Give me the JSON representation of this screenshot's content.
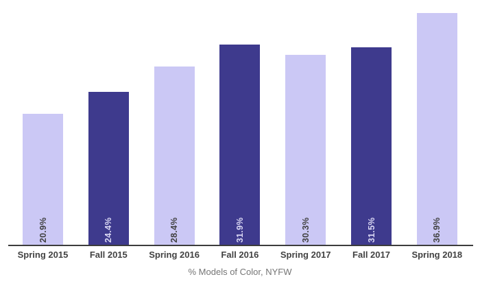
{
  "chart_data": {
    "type": "bar",
    "categories": [
      "Spring 2015",
      "Fall 2015",
      "Spring 2016",
      "Fall 2016",
      "Spring 2017",
      "Fall 2017",
      "Spring 2018"
    ],
    "values": [
      20.9,
      24.4,
      28.4,
      31.9,
      30.3,
      31.5,
      36.9
    ],
    "value_labels": [
      "20.9%",
      "24.4%",
      "28.4%",
      "31.9%",
      "30.3%",
      "31.5%",
      "36.9%"
    ],
    "bar_color_pattern": [
      "light",
      "dark",
      "light",
      "dark",
      "light",
      "dark",
      "light"
    ],
    "title": "",
    "xlabel": "% Models of Color, NYFW",
    "ylabel": "",
    "ylim": [
      0,
      38
    ],
    "grid": false,
    "legend": false,
    "value_label_rotation": "vertical-bottom-to-top",
    "colors": {
      "light_bar": "#CBC8F5",
      "dark_bar": "#3E3A8D",
      "axis_line": "#3C3C3C",
      "category_label": "#424242",
      "value_label_on_light": "#424242",
      "value_label_on_dark": "#D9D7F3",
      "axis_title": "#757575",
      "background": "#FFFFFF"
    }
  }
}
